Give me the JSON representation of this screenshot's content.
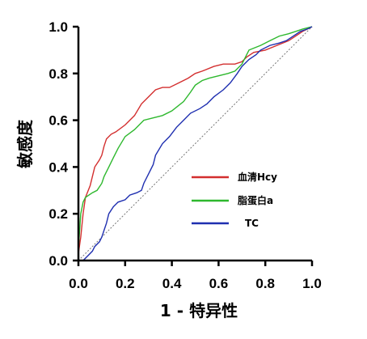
{
  "chart_data": {
    "type": "line",
    "xlabel": "1 - 特异性",
    "ylabel": "敏感度",
    "xlim": [
      0,
      1
    ],
    "ylim": [
      0,
      1
    ],
    "x_ticks": [
      "0.0",
      "0.2",
      "0.4",
      "0.6",
      "0.8",
      "1.0"
    ],
    "y_ticks": [
      "0.0",
      "0.2",
      "0.4",
      "0.6",
      "0.8",
      "1.0"
    ],
    "grid": false,
    "legend_position": "lower-right",
    "reference_line": {
      "from": [
        0,
        0
      ],
      "to": [
        1,
        1
      ],
      "style": "dotted"
    },
    "series": [
      {
        "name": "血清Hcy",
        "color": "#d32f2f",
        "points": [
          [
            0,
            0
          ],
          [
            0,
            0.03
          ],
          [
            0.01,
            0.1
          ],
          [
            0.02,
            0.2
          ],
          [
            0.03,
            0.27
          ],
          [
            0.05,
            0.32
          ],
          [
            0.07,
            0.4
          ],
          [
            0.09,
            0.43
          ],
          [
            0.1,
            0.45
          ],
          [
            0.11,
            0.49
          ],
          [
            0.12,
            0.52
          ],
          [
            0.14,
            0.54
          ],
          [
            0.16,
            0.55
          ],
          [
            0.2,
            0.58
          ],
          [
            0.24,
            0.62
          ],
          [
            0.27,
            0.67
          ],
          [
            0.3,
            0.7
          ],
          [
            0.33,
            0.73
          ],
          [
            0.36,
            0.74
          ],
          [
            0.39,
            0.74
          ],
          [
            0.43,
            0.76
          ],
          [
            0.47,
            0.78
          ],
          [
            0.5,
            0.8
          ],
          [
            0.53,
            0.81
          ],
          [
            0.58,
            0.83
          ],
          [
            0.62,
            0.84
          ],
          [
            0.67,
            0.84
          ],
          [
            0.7,
            0.85
          ],
          [
            0.72,
            0.87
          ],
          [
            0.75,
            0.89
          ],
          [
            0.8,
            0.9
          ],
          [
            0.85,
            0.92
          ],
          [
            0.9,
            0.94
          ],
          [
            0.93,
            0.96
          ],
          [
            0.96,
            0.98
          ],
          [
            1,
            1
          ]
        ]
      },
      {
        "name": "脂蛋白a",
        "color": "#2eb82e",
        "points": [
          [
            0,
            0
          ],
          [
            0,
            0.05
          ],
          [
            0.01,
            0.2
          ],
          [
            0.02,
            0.25
          ],
          [
            0.03,
            0.27
          ],
          [
            0.06,
            0.29
          ],
          [
            0.08,
            0.3
          ],
          [
            0.1,
            0.33
          ],
          [
            0.11,
            0.36
          ],
          [
            0.13,
            0.4
          ],
          [
            0.15,
            0.44
          ],
          [
            0.17,
            0.48
          ],
          [
            0.2,
            0.53
          ],
          [
            0.24,
            0.56
          ],
          [
            0.28,
            0.6
          ],
          [
            0.32,
            0.61
          ],
          [
            0.36,
            0.62
          ],
          [
            0.4,
            0.64
          ],
          [
            0.45,
            0.68
          ],
          [
            0.48,
            0.72
          ],
          [
            0.5,
            0.75
          ],
          [
            0.53,
            0.77
          ],
          [
            0.56,
            0.78
          ],
          [
            0.6,
            0.79
          ],
          [
            0.64,
            0.8
          ],
          [
            0.67,
            0.81
          ],
          [
            0.7,
            0.84
          ],
          [
            0.73,
            0.9
          ],
          [
            0.78,
            0.92
          ],
          [
            0.82,
            0.94
          ],
          [
            0.86,
            0.96
          ],
          [
            0.9,
            0.97
          ],
          [
            0.93,
            0.98
          ],
          [
            0.96,
            0.99
          ],
          [
            1,
            1
          ]
        ]
      },
      {
        "name": "TC",
        "color": "#1f2fb0",
        "points": [
          [
            0,
            0
          ],
          [
            0.02,
            0
          ],
          [
            0.04,
            0.02
          ],
          [
            0.06,
            0.04
          ],
          [
            0.07,
            0.06
          ],
          [
            0.09,
            0.08
          ],
          [
            0.1,
            0.1
          ],
          [
            0.11,
            0.13
          ],
          [
            0.12,
            0.16
          ],
          [
            0.13,
            0.2
          ],
          [
            0.15,
            0.23
          ],
          [
            0.17,
            0.25
          ],
          [
            0.2,
            0.26
          ],
          [
            0.22,
            0.28
          ],
          [
            0.25,
            0.29
          ],
          [
            0.27,
            0.3
          ],
          [
            0.28,
            0.33
          ],
          [
            0.3,
            0.37
          ],
          [
            0.32,
            0.41
          ],
          [
            0.33,
            0.45
          ],
          [
            0.36,
            0.5
          ],
          [
            0.39,
            0.53
          ],
          [
            0.42,
            0.57
          ],
          [
            0.45,
            0.6
          ],
          [
            0.48,
            0.63
          ],
          [
            0.52,
            0.65
          ],
          [
            0.55,
            0.67
          ],
          [
            0.58,
            0.7
          ],
          [
            0.62,
            0.73
          ],
          [
            0.65,
            0.76
          ],
          [
            0.68,
            0.8
          ],
          [
            0.7,
            0.83
          ],
          [
            0.73,
            0.86
          ],
          [
            0.76,
            0.88
          ],
          [
            0.78,
            0.9
          ],
          [
            0.82,
            0.92
          ],
          [
            0.86,
            0.93
          ],
          [
            0.89,
            0.94
          ],
          [
            0.92,
            0.96
          ],
          [
            0.95,
            0.98
          ],
          [
            0.98,
            0.99
          ],
          [
            1,
            1
          ]
        ]
      }
    ]
  }
}
